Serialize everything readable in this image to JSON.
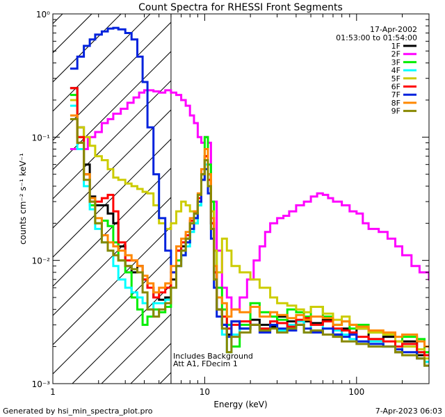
{
  "footer": {
    "left": "Generated by hsi_min_spectra_plot.pro",
    "right": "7-Apr-2023 06:03"
  },
  "chart_data": {
    "type": "line",
    "title": "Count Spectra for RHESSI Front Segments",
    "xlabel": "Energy (keV)",
    "ylabel": "counts cm⁻² s⁻¹ keV⁻¹",
    "xscale": "log",
    "yscale": "log",
    "xlim": [
      1,
      300
    ],
    "ylim": [
      0.001,
      1
    ],
    "x_tick_labels": [
      "1",
      "10",
      "100"
    ],
    "y_tick_labels": [
      "10⁰",
      "10⁻¹",
      "10⁻²",
      "10⁻³"
    ],
    "time_labels": [
      "17-Apr-2002",
      "01:53:00 to 01:54:00"
    ],
    "annotations": [
      "Includes Background",
      "Att A1, FDecim 1"
    ],
    "attenuator_cutoff_keV": 6,
    "legend_placement": "top-right",
    "series": [
      {
        "name": "1F",
        "color": "#000000",
        "x": [
          1.3,
          1.45,
          1.6,
          1.75,
          1.9,
          2.1,
          2.3,
          2.5,
          2.7,
          3.0,
          3.3,
          3.6,
          3.9,
          4.2,
          4.6,
          5.0,
          5.5,
          6.0,
          6.5,
          7.0,
          7.5,
          8.0,
          8.5,
          9.0,
          9.5,
          10.0,
          10.5,
          11.0,
          11.5,
          12,
          13,
          14,
          15,
          17,
          20,
          23,
          27,
          30,
          35,
          40,
          45,
          50,
          60,
          70,
          80,
          90,
          100,
          120,
          150,
          180,
          200,
          250,
          280
        ],
        "y": [
          0.25,
          0.12,
          0.06,
          0.033,
          0.028,
          0.028,
          0.024,
          0.02,
          0.013,
          0.009,
          0.008,
          0.009,
          0.007,
          0.006,
          0.005,
          0.0048,
          0.005,
          0.007,
          0.012,
          0.013,
          0.015,
          0.02,
          0.022,
          0.03,
          0.045,
          0.07,
          0.05,
          0.02,
          0.008,
          0.004,
          0.003,
          0.0025,
          0.0032,
          0.0028,
          0.0033,
          0.003,
          0.0029,
          0.0035,
          0.0032,
          0.003,
          0.0032,
          0.0031,
          0.0033,
          0.0025,
          0.0028,
          0.0025,
          0.0028,
          0.0023,
          0.0024,
          0.0018,
          0.0022,
          0.0017,
          0.0015
        ]
      },
      {
        "name": "2F",
        "color": "#ff00ff",
        "x": [
          1.3,
          1.5,
          1.7,
          1.9,
          2.1,
          2.3,
          2.5,
          2.8,
          3.1,
          3.4,
          3.7,
          4.0,
          4.3,
          4.6,
          5.0,
          5.5,
          6.0,
          6.5,
          7.0,
          7.5,
          8.0,
          8.5,
          9.0,
          9.5,
          10,
          10.5,
          11,
          12,
          13,
          14,
          15,
          17,
          19,
          21,
          23,
          25,
          27,
          30,
          33,
          36,
          40,
          45,
          50,
          55,
          60,
          65,
          70,
          80,
          90,
          100,
          110,
          120,
          140,
          160,
          180,
          200,
          230,
          260,
          300
        ],
        "y": [
          0.08,
          0.08,
          0.1,
          0.11,
          0.13,
          0.14,
          0.155,
          0.17,
          0.19,
          0.21,
          0.23,
          0.24,
          0.24,
          0.235,
          0.23,
          0.24,
          0.23,
          0.22,
          0.2,
          0.18,
          0.15,
          0.13,
          0.1,
          0.09,
          0.1,
          0.09,
          0.03,
          0.012,
          0.006,
          0.005,
          0.004,
          0.005,
          0.007,
          0.01,
          0.013,
          0.017,
          0.02,
          0.022,
          0.023,
          0.025,
          0.028,
          0.03,
          0.033,
          0.035,
          0.034,
          0.032,
          0.03,
          0.028,
          0.025,
          0.024,
          0.02,
          0.018,
          0.017,
          0.015,
          0.013,
          0.011,
          0.009,
          0.008,
          0.007
        ]
      },
      {
        "name": "3F",
        "color": "#00ee00",
        "x": [
          1.3,
          1.45,
          1.6,
          1.75,
          1.9,
          2.1,
          2.3,
          2.5,
          2.7,
          3.0,
          3.3,
          3.6,
          3.9,
          4.2,
          4.6,
          5.0,
          5.5,
          6.0,
          6.5,
          7.0,
          7.5,
          8.0,
          8.5,
          9.0,
          9.5,
          10.0,
          10.5,
          11.0,
          11.5,
          12,
          13,
          14,
          15,
          17,
          20,
          23,
          27,
          30,
          35,
          40,
          45,
          50,
          60,
          70,
          80,
          90,
          100,
          120,
          150,
          180,
          200,
          250,
          280
        ],
        "y": [
          0.22,
          0.1,
          0.05,
          0.028,
          0.02,
          0.021,
          0.019,
          0.014,
          0.01,
          0.008,
          0.005,
          0.004,
          0.003,
          0.0035,
          0.004,
          0.0038,
          0.0042,
          0.006,
          0.01,
          0.012,
          0.014,
          0.018,
          0.02,
          0.028,
          0.05,
          0.1,
          0.06,
          0.03,
          0.012,
          0.006,
          0.004,
          0.003,
          0.002,
          0.003,
          0.0045,
          0.0038,
          0.0035,
          0.0033,
          0.004,
          0.0038,
          0.0035,
          0.0042,
          0.0035,
          0.003,
          0.0032,
          0.0028,
          0.003,
          0.0026,
          0.0025,
          0.0022,
          0.0024,
          0.0023,
          0.0018
        ]
      },
      {
        "name": "4F",
        "color": "#00ffff",
        "x": [
          1.3,
          1.45,
          1.6,
          1.75,
          1.9,
          2.1,
          2.3,
          2.5,
          2.7,
          3.0,
          3.3,
          3.6,
          3.9,
          4.2,
          4.6,
          5.0,
          5.5,
          6.0,
          6.5,
          7.0,
          7.5,
          8.0,
          8.5,
          9.0,
          9.5,
          10.0,
          10.5,
          11.0,
          11.5,
          12,
          13,
          14,
          15,
          17,
          20,
          23,
          27,
          30,
          35,
          40,
          45,
          50,
          60,
          70,
          80,
          90,
          100,
          120,
          150,
          180,
          200,
          250,
          280
        ],
        "y": [
          0.18,
          0.08,
          0.04,
          0.026,
          0.018,
          0.014,
          0.012,
          0.009,
          0.007,
          0.006,
          0.0055,
          0.005,
          0.0045,
          0.004,
          0.0045,
          0.0045,
          0.0048,
          0.006,
          0.009,
          0.011,
          0.013,
          0.017,
          0.02,
          0.028,
          0.045,
          0.06,
          0.04,
          0.018,
          0.007,
          0.004,
          0.0025,
          0.0018,
          0.0025,
          0.0028,
          0.003,
          0.0028,
          0.0032,
          0.0027,
          0.003,
          0.0032,
          0.0026,
          0.003,
          0.0028,
          0.0027,
          0.0025,
          0.0023,
          0.0022,
          0.0022,
          0.002,
          0.0019,
          0.002,
          0.0018,
          0.0015
        ]
      },
      {
        "name": "5F",
        "color": "#cccc00",
        "x": [
          1.3,
          1.45,
          1.6,
          1.75,
          1.9,
          2.1,
          2.3,
          2.5,
          2.7,
          3.0,
          3.3,
          3.6,
          3.9,
          4.2,
          4.6,
          5.0,
          5.5,
          6.0,
          6.5,
          7.0,
          7.5,
          8.0,
          8.5,
          9.0,
          9.5,
          10.0,
          10.5,
          11.0,
          11.5,
          12,
          13,
          14,
          15,
          17,
          20,
          23,
          27,
          30,
          35,
          40,
          45,
          50,
          60,
          70,
          80,
          90,
          100,
          120,
          150,
          180,
          200,
          250,
          280
        ],
        "y": [
          0.2,
          0.12,
          0.1,
          0.085,
          0.07,
          0.065,
          0.055,
          0.047,
          0.045,
          0.042,
          0.04,
          0.038,
          0.036,
          0.035,
          0.028,
          0.02,
          0.018,
          0.02,
          0.025,
          0.03,
          0.028,
          0.025,
          0.025,
          0.03,
          0.045,
          0.07,
          0.05,
          0.025,
          0.012,
          0.008,
          0.015,
          0.012,
          0.009,
          0.008,
          0.007,
          0.006,
          0.005,
          0.0045,
          0.0043,
          0.004,
          0.0038,
          0.0042,
          0.0037,
          0.0033,
          0.0035,
          0.003,
          0.0028,
          0.0026,
          0.0025,
          0.0022,
          0.002,
          0.0019,
          0.0016
        ]
      },
      {
        "name": "6F",
        "color": "#ff0000",
        "x": [
          1.3,
          1.45,
          1.6,
          1.75,
          1.9,
          2.1,
          2.3,
          2.5,
          2.7,
          3.0,
          3.3,
          3.6,
          3.9,
          4.2,
          4.6,
          5.0,
          5.5,
          6.0,
          6.5,
          7.0,
          7.5,
          8.0,
          8.5,
          9.0,
          9.5,
          10.0,
          10.5,
          11.0,
          11.5,
          12,
          13,
          14,
          15,
          17,
          20,
          23,
          27,
          30,
          35,
          40,
          45,
          50,
          60,
          70,
          80,
          90,
          100,
          120,
          150,
          180,
          200,
          250,
          280
        ],
        "y": [
          0.25,
          0.1,
          0.05,
          0.03,
          0.03,
          0.032,
          0.034,
          0.025,
          0.014,
          0.01,
          0.01,
          0.009,
          0.007,
          0.006,
          0.005,
          0.0055,
          0.006,
          0.008,
          0.012,
          0.014,
          0.016,
          0.021,
          0.024,
          0.032,
          0.05,
          0.07,
          0.045,
          0.02,
          0.008,
          0.004,
          0.0035,
          0.0028,
          0.003,
          0.0032,
          0.003,
          0.0028,
          0.0032,
          0.0031,
          0.0029,
          0.0033,
          0.0034,
          0.003,
          0.0032,
          0.0028,
          0.0027,
          0.0026,
          0.0024,
          0.0023,
          0.0022,
          0.002,
          0.0021,
          0.0018,
          0.0017
        ]
      },
      {
        "name": "7F",
        "color": "#0022dd",
        "x": [
          1.3,
          1.45,
          1.6,
          1.75,
          1.9,
          2.1,
          2.3,
          2.5,
          2.7,
          3.0,
          3.3,
          3.6,
          3.9,
          4.2,
          4.6,
          5.0,
          5.5,
          6.0,
          6.5,
          7.0,
          7.5,
          8.0,
          8.5,
          9.0,
          9.5,
          10.0,
          10.5,
          11.0,
          11.5,
          12,
          13,
          14,
          15,
          17,
          20,
          23,
          27,
          30,
          35,
          40,
          45,
          50,
          60,
          70,
          80,
          90,
          100,
          120,
          150,
          180,
          200,
          250,
          280
        ],
        "y": [
          0.36,
          0.45,
          0.55,
          0.62,
          0.68,
          0.72,
          0.76,
          0.77,
          0.75,
          0.7,
          0.62,
          0.45,
          0.28,
          0.12,
          0.05,
          0.022,
          0.012,
          0.008,
          0.009,
          0.011,
          0.014,
          0.018,
          0.022,
          0.03,
          0.045,
          0.055,
          0.035,
          0.015,
          0.006,
          0.0035,
          0.003,
          0.0024,
          0.0032,
          0.0028,
          0.003,
          0.0026,
          0.003,
          0.0028,
          0.0027,
          0.003,
          0.0028,
          0.0026,
          0.0028,
          0.0025,
          0.0024,
          0.0025,
          0.0022,
          0.0021,
          0.002,
          0.0019,
          0.0018,
          0.0016,
          0.0014
        ]
      },
      {
        "name": "8F",
        "color": "#ff8800",
        "x": [
          1.3,
          1.45,
          1.6,
          1.75,
          1.9,
          2.1,
          2.3,
          2.5,
          2.7,
          3.0,
          3.3,
          3.6,
          3.9,
          4.2,
          4.6,
          5.0,
          5.5,
          6.0,
          6.5,
          7.0,
          7.5,
          8.0,
          8.5,
          9.0,
          9.5,
          10.0,
          10.5,
          11.0,
          11.5,
          12,
          13,
          14,
          15,
          17,
          20,
          23,
          27,
          30,
          35,
          40,
          45,
          50,
          60,
          70,
          80,
          90,
          100,
          120,
          150,
          180,
          200,
          250,
          280
        ],
        "y": [
          0.15,
          0.09,
          0.05,
          0.032,
          0.022,
          0.016,
          0.014,
          0.013,
          0.012,
          0.011,
          0.01,
          0.009,
          0.0075,
          0.0065,
          0.0055,
          0.006,
          0.0065,
          0.009,
          0.013,
          0.015,
          0.017,
          0.022,
          0.025,
          0.035,
          0.055,
          0.08,
          0.05,
          0.022,
          0.009,
          0.005,
          0.0045,
          0.0035,
          0.004,
          0.0038,
          0.0042,
          0.0035,
          0.0038,
          0.0036,
          0.0034,
          0.0036,
          0.0033,
          0.0035,
          0.0034,
          0.003,
          0.0032,
          0.003,
          0.0029,
          0.0027,
          0.0026,
          0.0024,
          0.0025,
          0.0022,
          0.002
        ]
      },
      {
        "name": "9F",
        "color": "#888800",
        "x": [
          1.3,
          1.45,
          1.6,
          1.75,
          1.9,
          2.1,
          2.3,
          2.5,
          2.7,
          3.0,
          3.3,
          3.6,
          3.9,
          4.2,
          4.6,
          5.0,
          5.5,
          6.0,
          6.5,
          7.0,
          7.5,
          8.0,
          8.5,
          9.0,
          9.5,
          10.0,
          10.5,
          11.0,
          11.5,
          12,
          13,
          14,
          15,
          17,
          20,
          23,
          27,
          30,
          35,
          40,
          45,
          50,
          60,
          70,
          80,
          90,
          100,
          120,
          150,
          180,
          200,
          250,
          280
        ],
        "y": [
          0.14,
          0.09,
          0.045,
          0.03,
          0.02,
          0.014,
          0.012,
          0.011,
          0.01,
          0.009,
          0.0085,
          0.008,
          0.0055,
          0.004,
          0.0035,
          0.004,
          0.0045,
          0.006,
          0.009,
          0.012,
          0.015,
          0.02,
          0.024,
          0.034,
          0.05,
          0.065,
          0.04,
          0.018,
          0.007,
          0.004,
          0.0028,
          0.0018,
          0.0024,
          0.0026,
          0.003,
          0.0027,
          0.0028,
          0.0026,
          0.0028,
          0.003,
          0.0026,
          0.0027,
          0.0025,
          0.0024,
          0.0022,
          0.0022,
          0.0021,
          0.002,
          0.002,
          0.0018,
          0.0017,
          0.0016,
          0.0014
        ]
      }
    ]
  }
}
